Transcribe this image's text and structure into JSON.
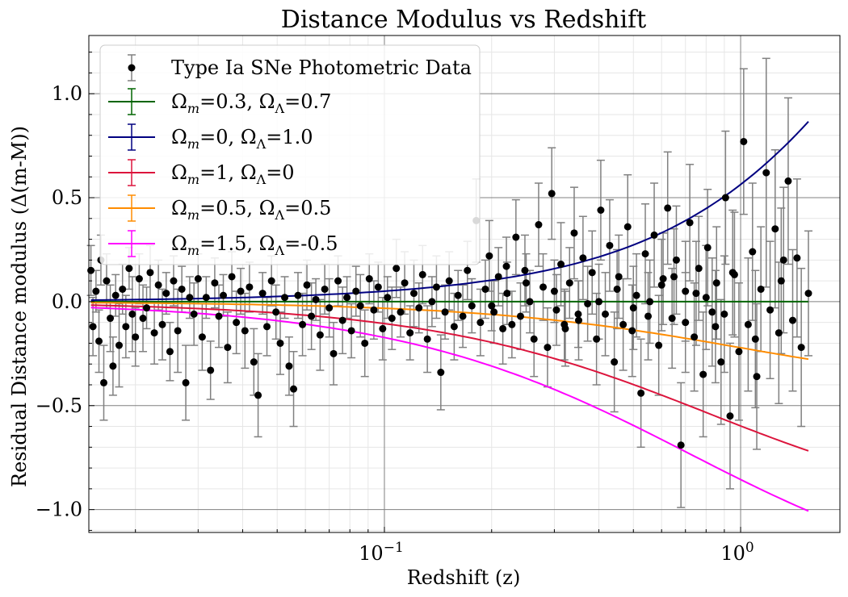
{
  "chart_data": {
    "type": "scatter",
    "title": "Distance Modulus vs Redshift",
    "xlabel": "Redshift (z)",
    "ylabel": "Residual Distance modulus (Δ(m-M))",
    "xscale": "log",
    "xlim": [
      0.0148,
      1.9
    ],
    "ylim": [
      -1.11,
      1.28
    ],
    "grid": true,
    "legend_position": "top-left",
    "x_ticks": [
      {
        "value": 0.1,
        "base": "10",
        "exp": "−1"
      },
      {
        "value": 1.0,
        "base": "10",
        "exp": "0"
      }
    ],
    "y_ticks": [
      {
        "value": 1.0,
        "label": "1.0"
      },
      {
        "value": 0.5,
        "label": "0.5"
      },
      {
        "value": 0.0,
        "label": "0.0"
      },
      {
        "value": -0.5,
        "label": "−0.5"
      },
      {
        "value": -1.0,
        "label": "−1.0"
      }
    ],
    "models": [
      {
        "omega_m": "0.3",
        "omega_l": "0.7",
        "om": 0.3,
        "ol": 0.7,
        "color": "#006400"
      },
      {
        "omega_m": "0",
        "omega_l": "1.0",
        "om": 0.0,
        "ol": 1.0,
        "color": "#000080"
      },
      {
        "omega_m": "1",
        "omega_l": "0",
        "om": 1.0,
        "ol": 0.0,
        "color": "#dc143c"
      },
      {
        "omega_m": "0.5",
        "omega_l": "0.5",
        "om": 0.5,
        "ol": 0.5,
        "color": "#ff8c00"
      },
      {
        "omega_m": "1.5",
        "omega_l": "-0.5",
        "om": 1.5,
        "ol": -0.5,
        "color": "#ff00ff"
      }
    ],
    "data_series": {
      "name": "Type Ia SNe Photometric Data",
      "marker_color": "#000000",
      "errorbar_color": "#808080",
      "points": [
        [
          0.015,
          0.15,
          0.12
        ],
        [
          0.0152,
          -0.12,
          0.14
        ],
        [
          0.0155,
          0.05,
          0.1
        ],
        [
          0.0158,
          -0.19,
          0.15
        ],
        [
          0.016,
          0.2,
          0.12
        ],
        [
          0.0163,
          -0.39,
          0.18
        ],
        [
          0.0166,
          0.1,
          0.13
        ],
        [
          0.017,
          -0.08,
          0.16
        ],
        [
          0.0173,
          -0.31,
          0.14
        ],
        [
          0.0176,
          0.03,
          0.1
        ],
        [
          0.018,
          -0.21,
          0.2
        ],
        [
          0.0184,
          0.06,
          0.12
        ],
        [
          0.0188,
          -0.12,
          0.15
        ],
        [
          0.0192,
          0.16,
          0.1
        ],
        [
          0.0196,
          -0.06,
          0.18
        ],
        [
          0.02,
          -0.17,
          0.14
        ],
        [
          0.0205,
          0.11,
          0.12
        ],
        [
          0.021,
          -0.08,
          0.16
        ],
        [
          0.0215,
          -0.03,
          0.1
        ],
        [
          0.022,
          0.14,
          0.13
        ],
        [
          0.0226,
          -0.15,
          0.15
        ],
        [
          0.0232,
          0.08,
          0.12
        ],
        [
          0.0238,
          -0.11,
          0.17
        ],
        [
          0.0244,
          0.04,
          0.1
        ],
        [
          0.025,
          -0.24,
          0.14
        ],
        [
          0.0256,
          0.1,
          0.12
        ],
        [
          0.0263,
          -0.14,
          0.2
        ],
        [
          0.027,
          0.06,
          0.11
        ],
        [
          0.0277,
          -0.39,
          0.18
        ],
        [
          0.0284,
          0.02,
          0.1
        ],
        [
          0.0292,
          -0.06,
          0.15
        ],
        [
          0.03,
          0.11,
          0.12
        ],
        [
          0.0308,
          -0.17,
          0.16
        ],
        [
          0.0316,
          0.02,
          0.1
        ],
        [
          0.0325,
          -0.33,
          0.14
        ],
        [
          0.0334,
          0.09,
          0.12
        ],
        [
          0.0343,
          -0.07,
          0.15
        ],
        [
          0.0353,
          0.03,
          0.1
        ],
        [
          0.0363,
          -0.22,
          0.17
        ],
        [
          0.0373,
          0.12,
          0.12
        ],
        [
          0.0384,
          -0.1,
          0.15
        ],
        [
          0.0395,
          0.05,
          0.11
        ],
        [
          0.0406,
          -0.14,
          0.18
        ],
        [
          0.0418,
          0.07,
          0.12
        ],
        [
          0.043,
          -0.29,
          0.16
        ],
        [
          0.0442,
          -0.45,
          0.2
        ],
        [
          0.0455,
          0.04,
          0.1
        ],
        [
          0.0468,
          -0.12,
          0.14
        ],
        [
          0.0482,
          0.1,
          0.12
        ],
        [
          0.0496,
          -0.05,
          0.13
        ],
        [
          0.051,
          -0.2,
          0.15
        ],
        [
          0.0525,
          0.02,
          0.1
        ],
        [
          0.054,
          -0.31,
          0.14
        ],
        [
          0.0556,
          -0.42,
          0.18
        ],
        [
          0.0572,
          0.03,
          0.11
        ],
        [
          0.0589,
          -0.11,
          0.15
        ],
        [
          0.0606,
          0.08,
          0.12
        ],
        [
          0.0624,
          -0.07,
          0.16
        ],
        [
          0.0642,
          0.01,
          0.1
        ],
        [
          0.066,
          -0.16,
          0.17
        ],
        [
          0.068,
          0.06,
          0.12
        ],
        [
          0.07,
          -0.03,
          0.14
        ],
        [
          0.072,
          -0.25,
          0.15
        ],
        [
          0.0741,
          0.1,
          0.12
        ],
        [
          0.0763,
          -0.09,
          0.16
        ],
        [
          0.0785,
          0.02,
          0.1
        ],
        [
          0.0808,
          -0.14,
          0.13
        ],
        [
          0.0832,
          0.05,
          0.12
        ],
        [
          0.0856,
          -0.02,
          0.15
        ],
        [
          0.0881,
          -0.2,
          0.16
        ],
        [
          0.0907,
          0.11,
          0.12
        ],
        [
          0.0934,
          -0.04,
          0.14
        ],
        [
          0.0961,
          0.07,
          0.12
        ],
        [
          0.0989,
          -0.13,
          0.15
        ],
        [
          0.102,
          0.02,
          0.1
        ],
        [
          0.105,
          -0.08,
          0.15
        ],
        [
          0.108,
          0.16,
          0.14
        ],
        [
          0.111,
          -0.05,
          0.12
        ],
        [
          0.114,
          0.09,
          0.15
        ],
        [
          0.118,
          -0.15,
          0.13
        ],
        [
          0.121,
          0.04,
          0.16
        ],
        [
          0.125,
          -0.03,
          0.12
        ],
        [
          0.128,
          0.13,
          0.14
        ],
        [
          0.132,
          -0.18,
          0.16
        ],
        [
          0.136,
          0.0,
          0.12
        ],
        [
          0.14,
          0.07,
          0.15
        ],
        [
          0.144,
          -0.34,
          0.18
        ],
        [
          0.148,
          -0.05,
          0.13
        ],
        [
          0.152,
          0.1,
          0.14
        ],
        [
          0.157,
          -0.12,
          0.16
        ],
        [
          0.161,
          0.03,
          0.12
        ],
        [
          0.166,
          -0.07,
          0.15
        ],
        [
          0.171,
          0.15,
          0.14
        ],
        [
          0.176,
          -0.02,
          0.13
        ],
        [
          0.181,
          0.39,
          0.2
        ],
        [
          0.186,
          -0.1,
          0.16
        ],
        [
          0.192,
          0.06,
          0.14
        ],
        [
          0.197,
          0.22,
          0.17
        ],
        [
          0.203,
          -0.05,
          0.15
        ],
        [
          0.209,
          0.12,
          0.14
        ],
        [
          0.215,
          -0.13,
          0.17
        ],
        [
          0.221,
          0.04,
          0.15
        ],
        [
          0.228,
          -0.11,
          0.16
        ],
        [
          0.234,
          0.31,
          0.18
        ],
        [
          0.241,
          -0.07,
          0.16
        ],
        [
          0.248,
          0.15,
          0.17
        ],
        [
          0.256,
          0.0,
          0.15
        ],
        [
          0.263,
          -0.18,
          0.18
        ],
        [
          0.271,
          0.37,
          0.2
        ],
        [
          0.279,
          0.07,
          0.16
        ],
        [
          0.287,
          -0.22,
          0.19
        ],
        [
          0.295,
          0.52,
          0.22
        ],
        [
          0.304,
          -0.04,
          0.17
        ],
        [
          0.313,
          0.18,
          0.2
        ],
        [
          0.322,
          -0.13,
          0.18
        ],
        [
          0.331,
          0.09,
          0.17
        ],
        [
          0.341,
          0.33,
          0.22
        ],
        [
          0.351,
          -0.09,
          0.19
        ],
        [
          0.361,
          0.21,
          0.2
        ],
        [
          0.372,
          -0.01,
          0.18
        ],
        [
          0.383,
          0.14,
          0.2
        ],
        [
          0.394,
          -0.18,
          0.22
        ],
        [
          0.405,
          0.44,
          0.24
        ],
        [
          0.417,
          -0.06,
          0.2
        ],
        [
          0.429,
          0.27,
          0.22
        ],
        [
          0.442,
          -0.29,
          0.24
        ],
        [
          0.455,
          0.12,
          0.2
        ],
        [
          0.468,
          -0.11,
          0.22
        ],
        [
          0.482,
          0.36,
          0.25
        ],
        [
          0.496,
          -0.14,
          0.22
        ],
        [
          0.51,
          0.03,
          0.2
        ],
        [
          0.525,
          -0.44,
          0.26
        ],
        [
          0.54,
          0.23,
          0.24
        ],
        [
          0.556,
          0.0,
          0.2
        ],
        [
          0.572,
          0.32,
          0.25
        ],
        [
          0.589,
          -0.21,
          0.24
        ],
        [
          0.606,
          0.11,
          0.22
        ],
        [
          0.624,
          0.45,
          0.27
        ],
        [
          0.642,
          -0.08,
          0.24
        ],
        [
          0.66,
          0.2,
          0.26
        ],
        [
          0.68,
          -0.69,
          0.3
        ],
        [
          0.7,
          0.05,
          0.24
        ],
        [
          0.72,
          0.38,
          0.28
        ],
        [
          0.741,
          -0.17,
          0.26
        ],
        [
          0.763,
          0.16,
          0.25
        ],
        [
          0.785,
          -0.35,
          0.3
        ],
        [
          0.808,
          0.26,
          0.28
        ],
        [
          0.832,
          -0.05,
          0.26
        ],
        [
          0.856,
          0.09,
          0.27
        ],
        [
          0.881,
          -0.29,
          0.3
        ],
        [
          0.907,
          0.5,
          0.32
        ],
        [
          0.934,
          -0.55,
          0.35
        ],
        [
          0.961,
          0.13,
          0.3
        ],
        [
          0.989,
          -0.24,
          0.33
        ],
        [
          1.02,
          0.77,
          0.35
        ],
        [
          1.05,
          -0.11,
          0.32
        ],
        [
          1.08,
          0.24,
          0.33
        ],
        [
          1.11,
          -0.36,
          0.35
        ],
        [
          1.14,
          0.06,
          0.3
        ],
        [
          1.18,
          0.62,
          0.55
        ],
        [
          1.21,
          -0.04,
          0.33
        ],
        [
          1.25,
          0.35,
          0.38
        ],
        [
          1.28,
          -0.15,
          0.34
        ],
        [
          1.32,
          0.2,
          0.35
        ],
        [
          1.36,
          0.58,
          0.4
        ],
        [
          1.4,
          -0.09,
          0.34
        ],
        [
          1.44,
          0.21,
          0.38
        ],
        [
          1.48,
          -0.22,
          0.38
        ],
        [
          1.55,
          0.04,
          0.3
        ],
        [
          0.2,
          -0.02,
          0.12
        ],
        [
          0.3,
          0.05,
          0.15
        ],
        [
          0.4,
          0.0,
          0.18
        ],
        [
          0.5,
          -0.03,
          0.2
        ],
        [
          0.6,
          0.08,
          0.22
        ],
        [
          0.7,
          -0.1,
          0.24
        ],
        [
          0.8,
          0.02,
          0.25
        ],
        [
          0.9,
          -0.06,
          0.28
        ],
        [
          0.25,
          0.09,
          0.14
        ],
        [
          0.35,
          -0.06,
          0.16
        ],
        [
          0.45,
          0.06,
          0.19
        ],
        [
          0.55,
          -0.07,
          0.21
        ],
        [
          0.65,
          0.12,
          0.23
        ],
        [
          0.75,
          0.04,
          0.25
        ],
        [
          0.85,
          -0.12,
          0.27
        ],
        [
          0.95,
          0.14,
          0.3
        ],
        [
          1.1,
          -0.18,
          0.33
        ],
        [
          1.3,
          0.1,
          0.35
        ],
        [
          0.22,
          0.17,
          0.14
        ],
        [
          0.32,
          -0.11,
          0.17
        ]
      ]
    }
  }
}
